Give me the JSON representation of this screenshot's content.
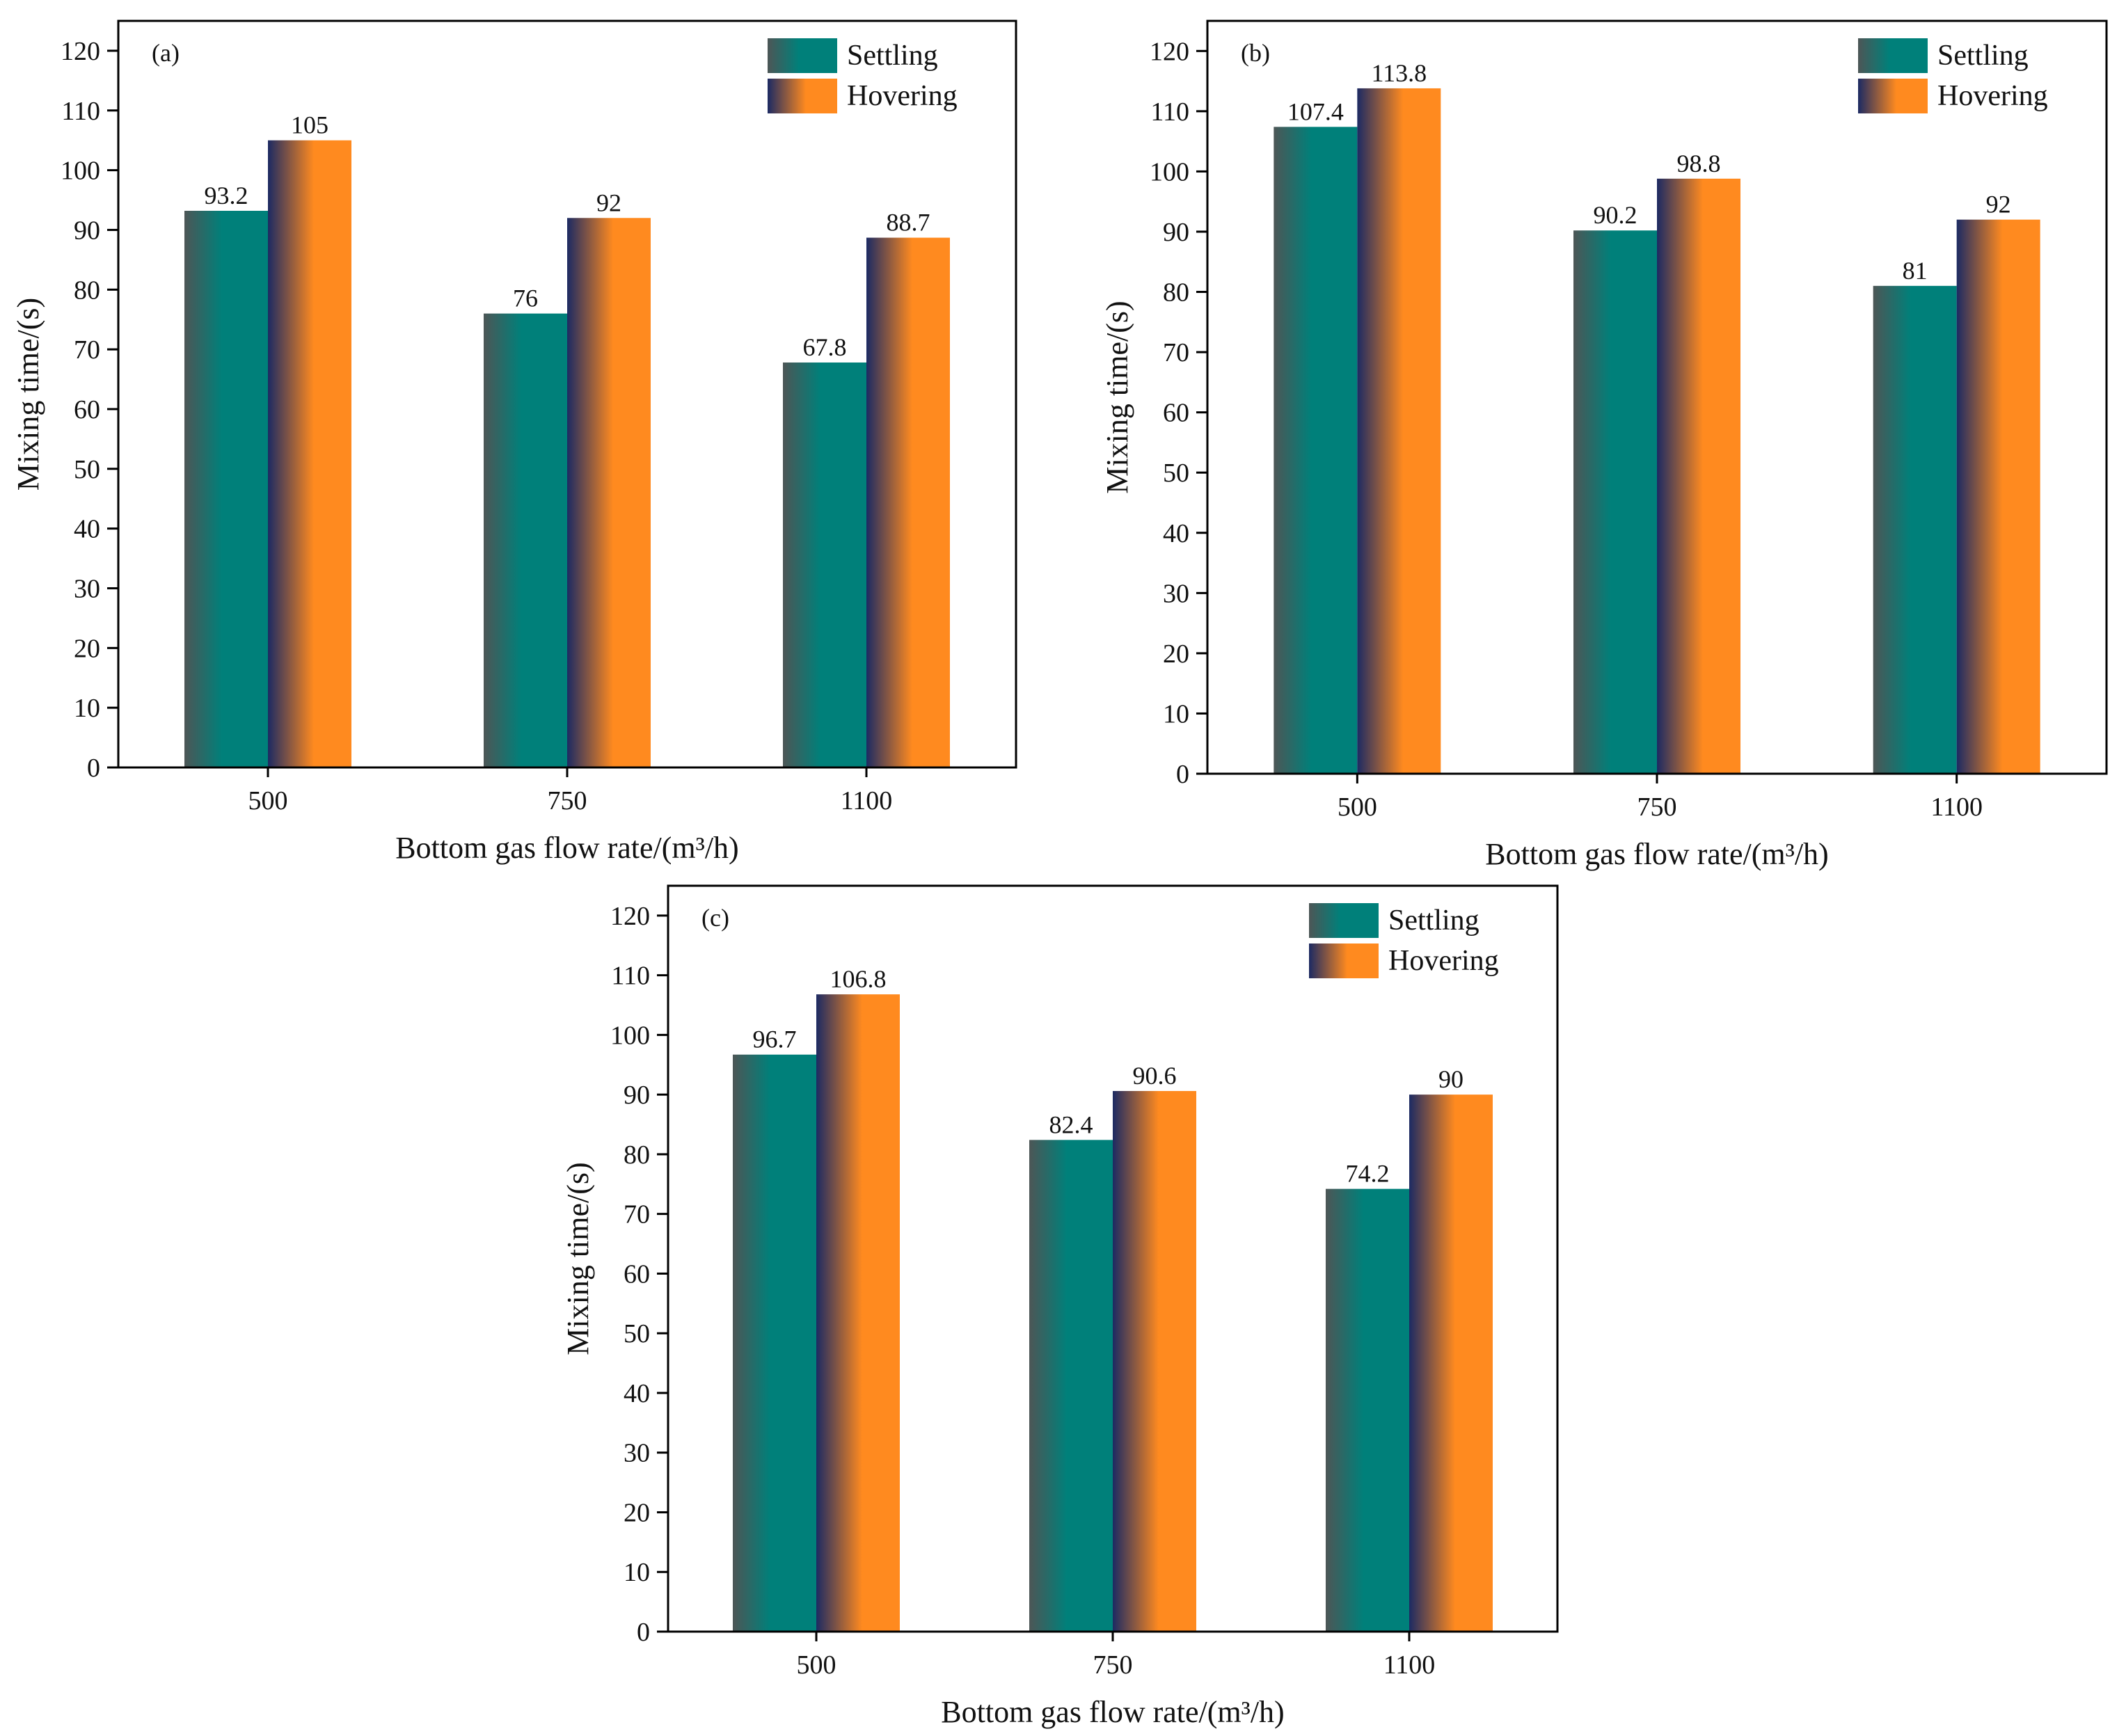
{
  "colors": {
    "settling_dark": "#4d5656",
    "settling_main": "#00807a",
    "hovering_dark": "#1c2a63",
    "hovering_main": "#ff8a1f",
    "axis": "#000000"
  },
  "chart_data": [
    {
      "type": "bar",
      "panel_label": "(a)",
      "categories": [
        "500",
        "750",
        "1100"
      ],
      "series": [
        {
          "name": "Settling",
          "values": [
            93.2,
            76,
            67.8
          ],
          "labels": [
            "93.2",
            "76",
            "67.8"
          ]
        },
        {
          "name": "Hovering",
          "values": [
            105,
            92,
            88.7
          ],
          "labels": [
            "105",
            "92",
            "88.7"
          ]
        }
      ],
      "xlabel": "Bottom gas flow rate/(m³/h)",
      "ylabel": "Mixing time/(s)",
      "ylim": [
        0,
        125
      ],
      "yticks": [
        "0",
        "10",
        "20",
        "30",
        "40",
        "50",
        "60",
        "70",
        "80",
        "90",
        "100",
        "110",
        "120"
      ],
      "legend": "top-right",
      "grid": false
    },
    {
      "type": "bar",
      "panel_label": "(b)",
      "categories": [
        "500",
        "750",
        "1100"
      ],
      "series": [
        {
          "name": "Settling",
          "values": [
            107.4,
            90.2,
            81
          ],
          "labels": [
            "107.4",
            "90.2",
            "81"
          ]
        },
        {
          "name": "Hovering",
          "values": [
            113.8,
            98.8,
            92
          ],
          "labels": [
            "113.8",
            "98.8",
            "92"
          ]
        }
      ],
      "xlabel": "Bottom gas flow rate/(m³/h)",
      "ylabel": "Mixing time/(s)",
      "ylim": [
        0,
        125
      ],
      "yticks": [
        "0",
        "10",
        "20",
        "30",
        "40",
        "50",
        "60",
        "70",
        "80",
        "90",
        "100",
        "110",
        "120"
      ],
      "legend": "top-right",
      "grid": false
    },
    {
      "type": "bar",
      "panel_label": "(c)",
      "categories": [
        "500",
        "750",
        "1100"
      ],
      "series": [
        {
          "name": "Settling",
          "values": [
            96.7,
            82.4,
            74.2
          ],
          "labels": [
            "96.7",
            "82.4",
            "74.2"
          ]
        },
        {
          "name": "Hovering",
          "values": [
            106.8,
            90.6,
            90
          ],
          "labels": [
            "106.8",
            "90.6",
            "90"
          ]
        }
      ],
      "xlabel": "Bottom gas flow rate/(m³/h)",
      "ylabel": "Mixing time/(s)",
      "ylim": [
        0,
        125
      ],
      "yticks": [
        "0",
        "10",
        "20",
        "30",
        "40",
        "50",
        "60",
        "70",
        "80",
        "90",
        "100",
        "110",
        "120"
      ],
      "legend": "top-right",
      "grid": false
    }
  ]
}
